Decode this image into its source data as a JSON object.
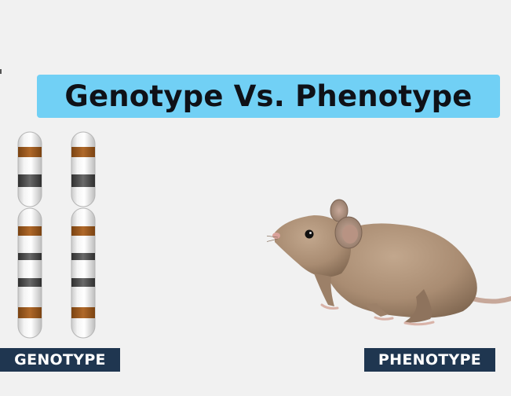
{
  "title": "Genotype Vs. Phenotype",
  "labels": {
    "genotype": "GENOTYPE",
    "phenotype": "PHENOTYPE"
  },
  "figures": {
    "chromosomes": "chromosome-illustration",
    "mouse": "mouse-illustration"
  },
  "colors": {
    "banner": "#71d0f5",
    "label_bg": "#1f3650",
    "band_brown": "#9a5a1e",
    "band_dark": "#4a4a4a",
    "mouse_fur": "#a98c72"
  }
}
